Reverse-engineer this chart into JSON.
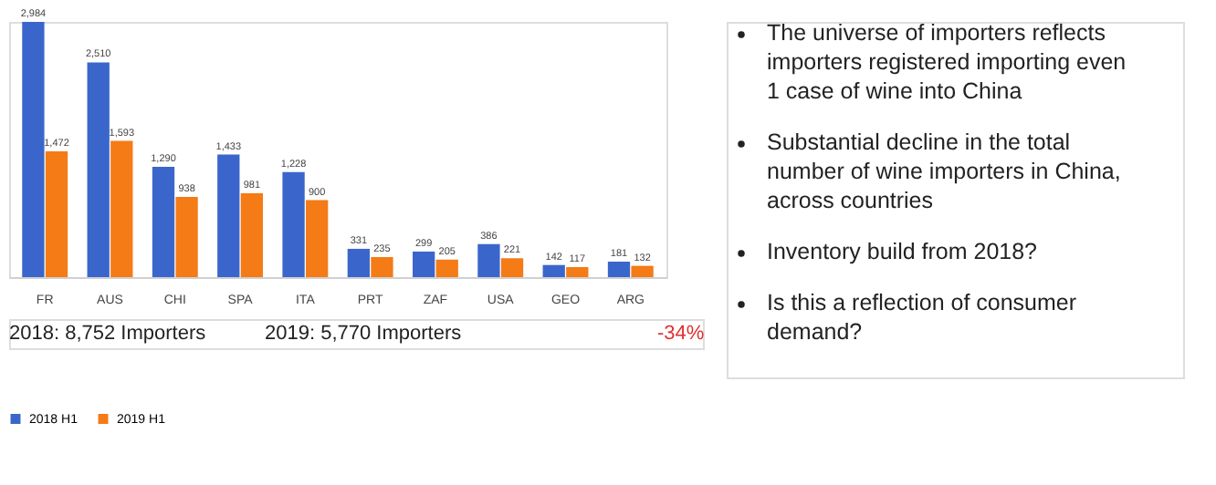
{
  "chart_data": {
    "type": "bar",
    "categories": [
      "FR",
      "AUS",
      "CHI",
      "SPA",
      "ITA",
      "PRT",
      "ZAF",
      "USA",
      "GEO",
      "ARG"
    ],
    "series": [
      {
        "name": "2018 H1",
        "color": "#3a66cc",
        "values": [
          2984,
          2510,
          1290,
          1433,
          1228,
          331,
          299,
          386,
          142,
          181
        ],
        "value_labels": [
          "2,984",
          "2,510",
          "1,290",
          "1,433",
          "1,228",
          "331",
          "299",
          "386",
          "142",
          "181"
        ]
      },
      {
        "name": "2019 H1",
        "color": "#f47b16",
        "values": [
          1472,
          1593,
          938,
          981,
          900,
          235,
          205,
          221,
          117,
          132
        ],
        "value_labels": [
          "1,472",
          "1,593",
          "938",
          "981",
          "900",
          "235",
          "205",
          "221",
          "117",
          "132"
        ]
      }
    ],
    "legend": "bottom",
    "tick_labels": "x",
    "annotations": [
      "The universe of importers reflects importers registered importing even 1 case of wine into China",
      "Substantial decline in the total number of wine importers in China, across countries",
      "Inventory build from 2018?",
      "Is this a reflection of consumer demand?",
      "2018: 8,752 Importers",
      "2019: 5,770 Importers",
      "-34%"
    ]
  }
}
